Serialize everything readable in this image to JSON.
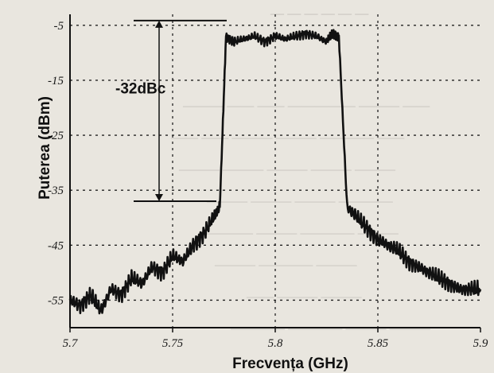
{
  "chart_data": {
    "type": "line",
    "title": "",
    "xlabel": "Frecvența (GHz)",
    "ylabel": "Puterea (dBm)",
    "x_ticks": [
      {
        "value": 5.7,
        "label": "5.7"
      },
      {
        "value": 5.75,
        "label": "5.75"
      },
      {
        "value": 5.8,
        "label": "5.8"
      },
      {
        "value": 5.85,
        "label": "5.85"
      },
      {
        "value": 5.9,
        "label": "5.9"
      }
    ],
    "y_ticks": [
      {
        "value": -5,
        "label": "-5"
      },
      {
        "value": -15,
        "label": "-15"
      },
      {
        "value": -25,
        "label": "-25"
      },
      {
        "value": -35,
        "label": "-35"
      },
      {
        "value": -45,
        "label": "-45"
      },
      {
        "value": -55,
        "label": "-55"
      }
    ],
    "xlim": [
      5.7,
      5.9
    ],
    "ylim": [
      -60,
      -3
    ],
    "grid": true,
    "annotation": {
      "text": "-32dBc",
      "y_top": -5,
      "y_bottom": -37
    },
    "series": [
      {
        "color": "#111111",
        "x": [
          5.7,
          5.705,
          5.71,
          5.715,
          5.72,
          5.725,
          5.73,
          5.735,
          5.74,
          5.745,
          5.75,
          5.755,
          5.76,
          5.765,
          5.77,
          5.773,
          5.776,
          5.78,
          5.785,
          5.79,
          5.795,
          5.8,
          5.805,
          5.81,
          5.815,
          5.82,
          5.825,
          5.828,
          5.831,
          5.835,
          5.84,
          5.845,
          5.85,
          5.855,
          5.86,
          5.865,
          5.87,
          5.875,
          5.88,
          5.885,
          5.89,
          5.895,
          5.9
        ],
        "y": [
          -55,
          -56,
          -54,
          -57,
          -53,
          -54,
          -51,
          -52,
          -49,
          -50,
          -47,
          -48,
          -45,
          -43,
          -40,
          -38,
          -7,
          -8,
          -7.5,
          -7,
          -8,
          -7,
          -7.5,
          -7,
          -6.5,
          -7,
          -8,
          -6.5,
          -7,
          -38,
          -40,
          -42,
          -44,
          -45,
          -46,
          -48,
          -49,
          -50,
          -51,
          -52,
          -53,
          -53,
          -53
        ]
      }
    ]
  }
}
